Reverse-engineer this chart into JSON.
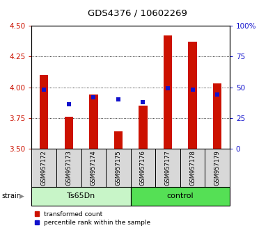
{
  "title": "GDS4376 / 10602269",
  "samples": [
    "GSM957172",
    "GSM957173",
    "GSM957174",
    "GSM957175",
    "GSM957176",
    "GSM957177",
    "GSM957178",
    "GSM957179"
  ],
  "red_values": [
    4.1,
    3.76,
    3.94,
    3.64,
    3.85,
    4.42,
    4.37,
    4.03
  ],
  "blue_values_pct": [
    48,
    36,
    42,
    40,
    38,
    49,
    48,
    44
  ],
  "ylim": [
    3.5,
    4.5
  ],
  "y2lim": [
    0,
    100
  ],
  "yticks": [
    3.5,
    3.75,
    4.0,
    4.25,
    4.5
  ],
  "y2ticks": [
    0,
    25,
    50,
    75,
    100
  ],
  "y2tick_labels": [
    "0",
    "25",
    "50",
    "75",
    "100%"
  ],
  "group_labels": [
    "Ts65Dn",
    "control"
  ],
  "group_ranges": [
    [
      0,
      4
    ],
    [
      4,
      8
    ]
  ],
  "group_colors_light": "#c8f5c8",
  "group_colors_dark": "#55e055",
  "bar_bottom": 3.5,
  "red_color": "#cc1100",
  "blue_color": "#1111cc",
  "bg_color": "#d8d8d8",
  "plot_bg": "#ffffff",
  "strain_label": "strain",
  "legend_red": "transformed count",
  "legend_blue": "percentile rank within the sample",
  "bar_width": 0.35
}
